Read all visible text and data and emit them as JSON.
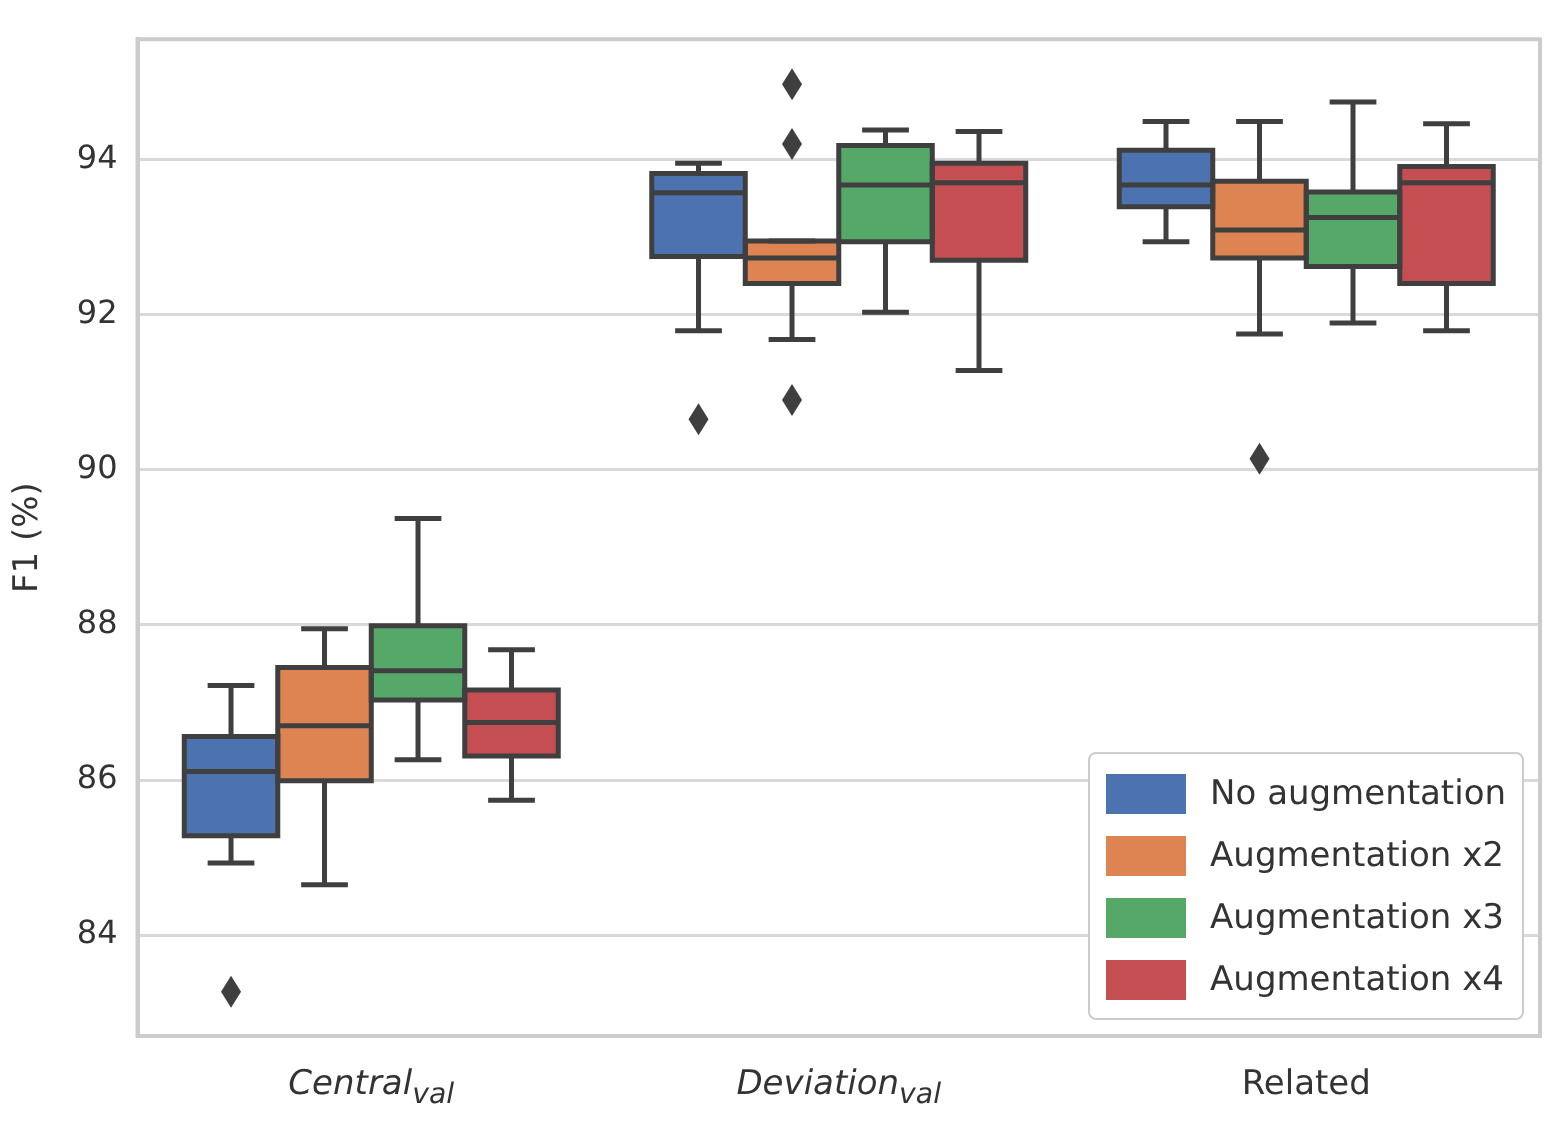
{
  "chart_data": {
    "type": "box",
    "ylabel": "F1 (%)",
    "categories": [
      "Central$_{val}$",
      "Deviation$_{val}$",
      "Related"
    ],
    "ylim": [
      82.7,
      95.55
    ],
    "yticks": [
      84,
      86,
      88,
      90,
      92,
      94
    ],
    "grid": "y",
    "legend": "bottom right",
    "series": [
      {
        "name": "No augmentation",
        "color": "#4c72b0",
        "boxes": [
          {
            "low": 84.93,
            "q1": 85.28,
            "median": 86.11,
            "q3": 86.56,
            "high": 87.22,
            "outliers": [
              83.27
            ]
          },
          {
            "low": 91.79,
            "q1": 92.75,
            "median": 93.57,
            "q3": 93.82,
            "high": 93.95,
            "outliers": [
              90.65
            ]
          },
          {
            "low": 92.94,
            "q1": 93.39,
            "median": 93.67,
            "q3": 94.12,
            "high": 94.49
          }
        ]
      },
      {
        "name": "Augmentation x2",
        "color": "#dd8452",
        "boxes": [
          {
            "low": 84.65,
            "q1": 85.99,
            "median": 86.7,
            "q3": 87.45,
            "high": 87.95
          },
          {
            "low": 91.68,
            "q1": 92.4,
            "median": 92.73,
            "q3": 92.95,
            "high": 92.95,
            "outliers": [
              94.97,
              94.2,
              90.9
            ]
          },
          {
            "low": 91.75,
            "q1": 92.73,
            "median": 93.09,
            "q3": 93.72,
            "high": 94.49,
            "outliers": [
              90.14
            ]
          }
        ]
      },
      {
        "name": "Augmentation x3",
        "color": "#55a868",
        "boxes": [
          {
            "low": 86.26,
            "q1": 87.03,
            "median": 87.41,
            "q3": 87.99,
            "high": 89.37
          },
          {
            "low": 92.03,
            "q1": 92.94,
            "median": 93.67,
            "q3": 94.18,
            "high": 94.38
          },
          {
            "low": 91.89,
            "q1": 92.62,
            "median": 93.25,
            "q3": 93.58,
            "high": 94.74
          }
        ]
      },
      {
        "name": "Augmentation x4",
        "color": "#c44e52",
        "boxes": [
          {
            "low": 85.74,
            "q1": 86.31,
            "median": 86.74,
            "q3": 87.16,
            "high": 87.68
          },
          {
            "low": 91.28,
            "q1": 92.7,
            "median": 93.7,
            "q3": 93.95,
            "high": 94.36
          },
          {
            "low": 91.79,
            "q1": 92.4,
            "median": 93.7,
            "q3": 93.91,
            "high": 94.46
          }
        ]
      }
    ]
  }
}
